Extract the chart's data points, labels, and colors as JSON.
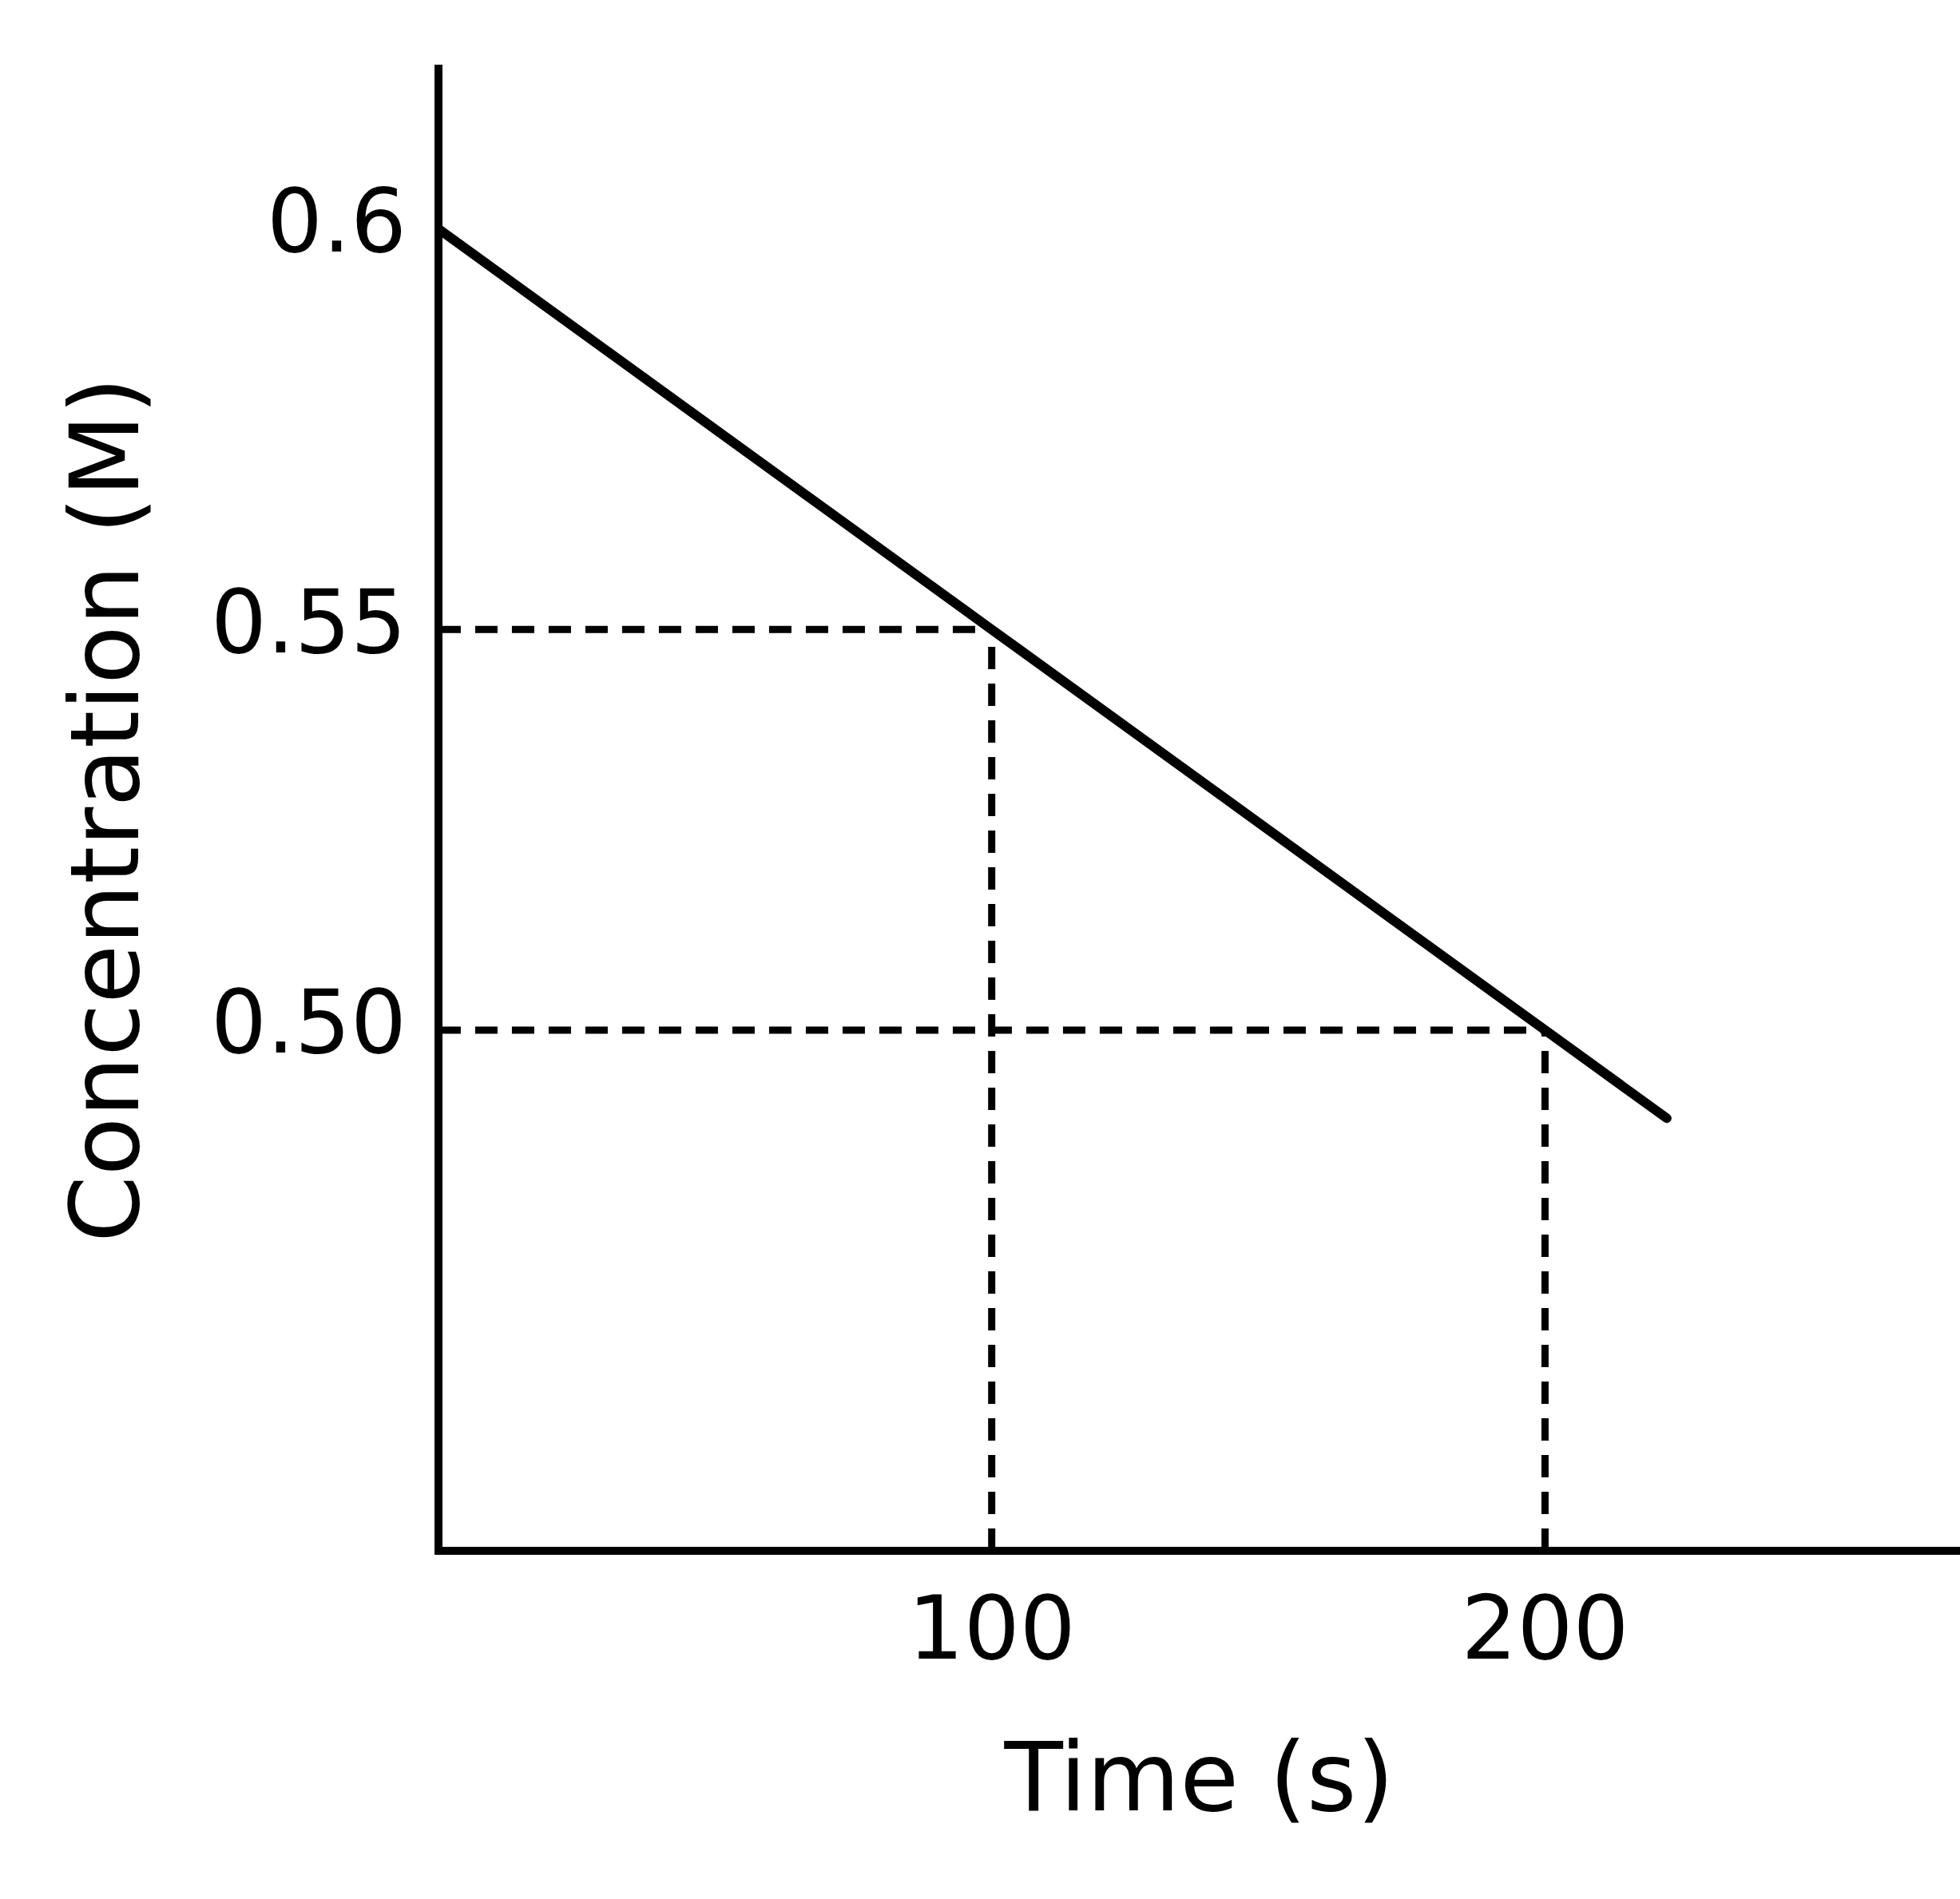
{
  "chart_data": {
    "type": "line",
    "xlabel": "Time (s)",
    "ylabel": "Concentration (M)",
    "x": [
      0,
      100,
      200,
      222
    ],
    "series": [
      {
        "color": "#000000",
        "values": [
          0.6,
          0.55,
          0.5,
          0.489
        ]
      }
    ],
    "xlim": [
      0,
      275
    ],
    "xticks": [
      100,
      200
    ],
    "ylim": [
      0.435,
      0.62
    ],
    "yticks": [
      {
        "value": 0.5,
        "label": "0.50"
      },
      0.55,
      0.6
    ],
    "ref_lines": [
      {
        "axis": "y",
        "value": 0.55,
        "line_style": "dashed"
      },
      {
        "axis": "y",
        "value": 0.5,
        "line_style": "dashed"
      },
      {
        "axis": "x",
        "value": 100,
        "line_style": "dashed"
      },
      {
        "axis": "x",
        "value": 200,
        "line_style": "dashed"
      }
    ],
    "grid": false,
    "legend": false,
    "marker": "none",
    "line_style": "solid"
  }
}
